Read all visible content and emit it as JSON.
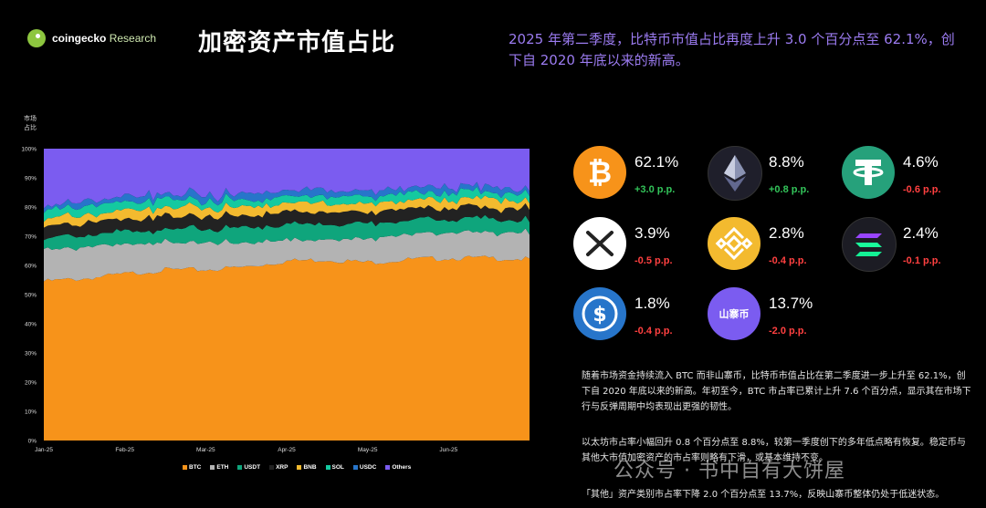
{
  "brand": {
    "name": "coingecko",
    "suffix": " Research"
  },
  "title": "加密资产市值占比",
  "headline": {
    "text": "2025 年第二季度，比特币市值占比再度上升 3.0 个百分点至 62.1%，创下自 2020 年底以来的新高。"
  },
  "y_axis_label": "市场占比",
  "chart_data": {
    "type": "area",
    "stacked": true,
    "x_ticks": [
      "Jan-25",
      "Feb-25",
      "Mar-25",
      "Apr-25",
      "May-25",
      "Jun-25"
    ],
    "y_ticks": [
      "0%",
      "10%",
      "20%",
      "30%",
      "40%",
      "50%",
      "60%",
      "70%",
      "80%",
      "90%",
      "100%"
    ],
    "ylim": [
      0,
      100
    ],
    "legend_position": "bottom",
    "x": [
      "Jan-25",
      "Jan-25b",
      "Feb-25",
      "Feb-25b",
      "Mar-25",
      "Mar-25b",
      "Apr-25",
      "Apr-25b",
      "May-25",
      "May-25b",
      "Jun-25",
      "Jun-25b",
      "end"
    ],
    "series": [
      {
        "name": "BTC",
        "color": "#f7931a",
        "values": [
          54.5,
          55.5,
          57.0,
          58.5,
          58.5,
          59.5,
          61.5,
          62.0,
          61.0,
          62.0,
          62.5,
          62.5,
          62.1
        ]
      },
      {
        "name": "ETH",
        "color": "#b3b3b3",
        "values": [
          11.0,
          10.7,
          10.0,
          9.5,
          9.0,
          8.3,
          7.3,
          7.0,
          8.4,
          8.6,
          8.8,
          8.8,
          8.8
        ]
      },
      {
        "name": "USDT",
        "color": "#0fa57c",
        "values": [
          3.9,
          4.0,
          4.3,
          4.6,
          4.8,
          5.0,
          5.2,
          5.2,
          5.0,
          4.8,
          4.7,
          4.6,
          4.6
        ]
      },
      {
        "name": "XRP",
        "color": "#222222",
        "values": [
          4.0,
          4.3,
          4.4,
          4.5,
          4.3,
          4.3,
          4.2,
          4.0,
          4.0,
          3.9,
          3.9,
          3.9,
          3.9
        ]
      },
      {
        "name": "BNB",
        "color": "#f3ba2f",
        "values": [
          2.7,
          2.7,
          2.8,
          3.0,
          3.0,
          3.0,
          3.0,
          3.0,
          2.9,
          2.8,
          2.8,
          2.8,
          2.8
        ]
      },
      {
        "name": "SOL",
        "color": "#14c9a0",
        "values": [
          3.0,
          3.0,
          2.8,
          2.6,
          2.4,
          2.3,
          2.3,
          2.4,
          2.5,
          2.5,
          2.5,
          2.4,
          2.4
        ]
      },
      {
        "name": "USDC",
        "color": "#2775ca",
        "values": [
          1.6,
          1.6,
          1.8,
          1.9,
          2.0,
          2.1,
          2.2,
          2.1,
          2.0,
          1.9,
          1.9,
          1.8,
          1.8
        ]
      },
      {
        "name": "Others",
        "color": "#7b5cf0",
        "values": [
          19.3,
          18.2,
          16.9,
          15.4,
          16.0,
          15.5,
          14.3,
          14.3,
          14.2,
          13.5,
          12.9,
          13.2,
          13.7
        ]
      }
    ]
  },
  "coins": [
    {
      "symbol": "BTC",
      "share": "62.1%",
      "change": "+3.0 p.p.",
      "dir": "up",
      "color": "#f7931a",
      "icon": "bitcoin-icon"
    },
    {
      "symbol": "ETH",
      "share": "8.8%",
      "change": "+0.8 p.p.",
      "dir": "up",
      "color": "#1f1f2b",
      "icon": "ethereum-icon"
    },
    {
      "symbol": "USDT",
      "share": "4.6%",
      "change": "-0.6 p.p.",
      "dir": "down",
      "color": "#26a17b",
      "icon": "tether-icon"
    },
    {
      "symbol": "XRP",
      "share": "3.9%",
      "change": "-0.5 p.p.",
      "dir": "down",
      "color": "#ffffff",
      "icon": "xrp-icon"
    },
    {
      "symbol": "BNB",
      "share": "2.8%",
      "change": "-0.4 p.p.",
      "dir": "down",
      "color": "#f3ba2f",
      "icon": "bnb-icon"
    },
    {
      "symbol": "SOL",
      "share": "2.4%",
      "change": "-0.1 p.p.",
      "dir": "down",
      "color": "#1c1c24",
      "icon": "solana-icon"
    },
    {
      "symbol": "USDC",
      "share": "1.8%",
      "change": "-0.4 p.p.",
      "dir": "down",
      "color": "#2775ca",
      "icon": "usdc-icon"
    },
    {
      "symbol": "山寨币",
      "share": "13.7%",
      "change": "-2.0 p.p.",
      "dir": "down",
      "color": "#7b5cf0",
      "icon": "altcoin-badge",
      "label": "山寨币"
    }
  ],
  "paragraphs": [
    "随着市场资金持续流入 BTC 而非山寨币，比特币市值占比在第二季度进一步上升至 62.1%，创下自 2020 年底以来的新高。年初至今，BTC 市占率已累计上升 7.6 个百分点，显示其在市场下行与反弹周期中均表现出更强的韧性。",
    "以太坊市占率小幅回升 0.8 个百分点至 8.8%，较第一季度创下的多年低点略有恢复。稳定币与其他大市值加密资产的市占率则略有下滑，或基本维持不变。",
    "「其他」资产类别市占率下降 2.0 个百分点至 13.7%，反映山寨币整体仍处于低迷状态。"
  ],
  "watermark": "公众号 · 书中自有大饼屋"
}
